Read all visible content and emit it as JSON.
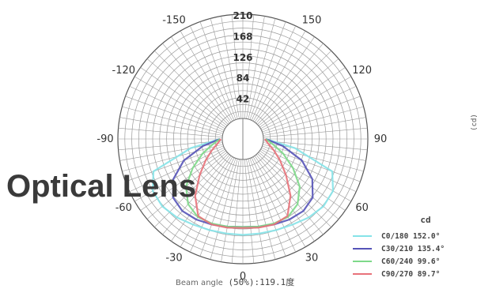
{
  "overlay_title": "Optical Lens",
  "beam_caption": {
    "label": "Beam angle",
    "value": "(50%):119.1度"
  },
  "side_unit": "(cd)",
  "chart_data": {
    "type": "polar-line",
    "angle_tick_labels": [
      "-150",
      "-120",
      "-90",
      "-60",
      "-30",
      "0",
      "30",
      "60",
      "90",
      "120",
      "150"
    ],
    "angle_ticks": [
      -150,
      -120,
      -90,
      -60,
      -30,
      0,
      30,
      60,
      90,
      120,
      150
    ],
    "radial_tick_labels": [
      "42",
      "84",
      "126",
      "168",
      "210"
    ],
    "radial_ticks": [
      42,
      84,
      126,
      168,
      210
    ],
    "rmax": 210,
    "grid": true,
    "legend_position": "bottom-right",
    "legend_unit": "cd",
    "series": [
      {
        "name": "C0/180 152.0°",
        "color": "#86e3e8",
        "angles": [
          -90,
          -80,
          -70,
          -60,
          -50,
          -40,
          -30,
          -20,
          -10,
          0,
          10,
          20,
          30,
          40,
          50,
          60,
          70,
          80,
          90
        ],
        "values": [
          5,
          65,
          150,
          168,
          170,
          165,
          158,
          154,
          152,
          152,
          152,
          154,
          158,
          165,
          170,
          168,
          150,
          65,
          5
        ]
      },
      {
        "name": "C30/210 135.4°",
        "color": "#5553b8",
        "angles": [
          -90,
          -80,
          -70,
          -60,
          -50,
          -40,
          -30,
          -20,
          -10,
          0,
          10,
          20,
          30,
          40,
          50,
          60,
          70,
          80,
          90
        ],
        "values": [
          5,
          40,
          85,
          120,
          142,
          148,
          146,
          142,
          138,
          136,
          138,
          142,
          146,
          148,
          142,
          120,
          85,
          40,
          5
        ]
      },
      {
        "name": "C60/240 99.6°",
        "color": "#7ed98a",
        "angles": [
          -90,
          -80,
          -70,
          -60,
          -50,
          -40,
          -30,
          -20,
          -10,
          0,
          10,
          20,
          30,
          40,
          50,
          60,
          70,
          80,
          90
        ],
        "values": [
          5,
          20,
          45,
          75,
          108,
          130,
          140,
          140,
          138,
          136,
          138,
          140,
          140,
          130,
          108,
          75,
          45,
          20,
          5
        ]
      },
      {
        "name": "C90/270 89.7°",
        "color": "#e8727a",
        "angles": [
          -90,
          -80,
          -70,
          -60,
          -50,
          -40,
          -30,
          -20,
          -10,
          0,
          10,
          20,
          30,
          40,
          50,
          60,
          70,
          80,
          90
        ],
        "values": [
          3,
          10,
          25,
          45,
          72,
          108,
          138,
          142,
          140,
          138,
          140,
          142,
          138,
          108,
          72,
          45,
          25,
          10,
          3
        ]
      }
    ]
  }
}
